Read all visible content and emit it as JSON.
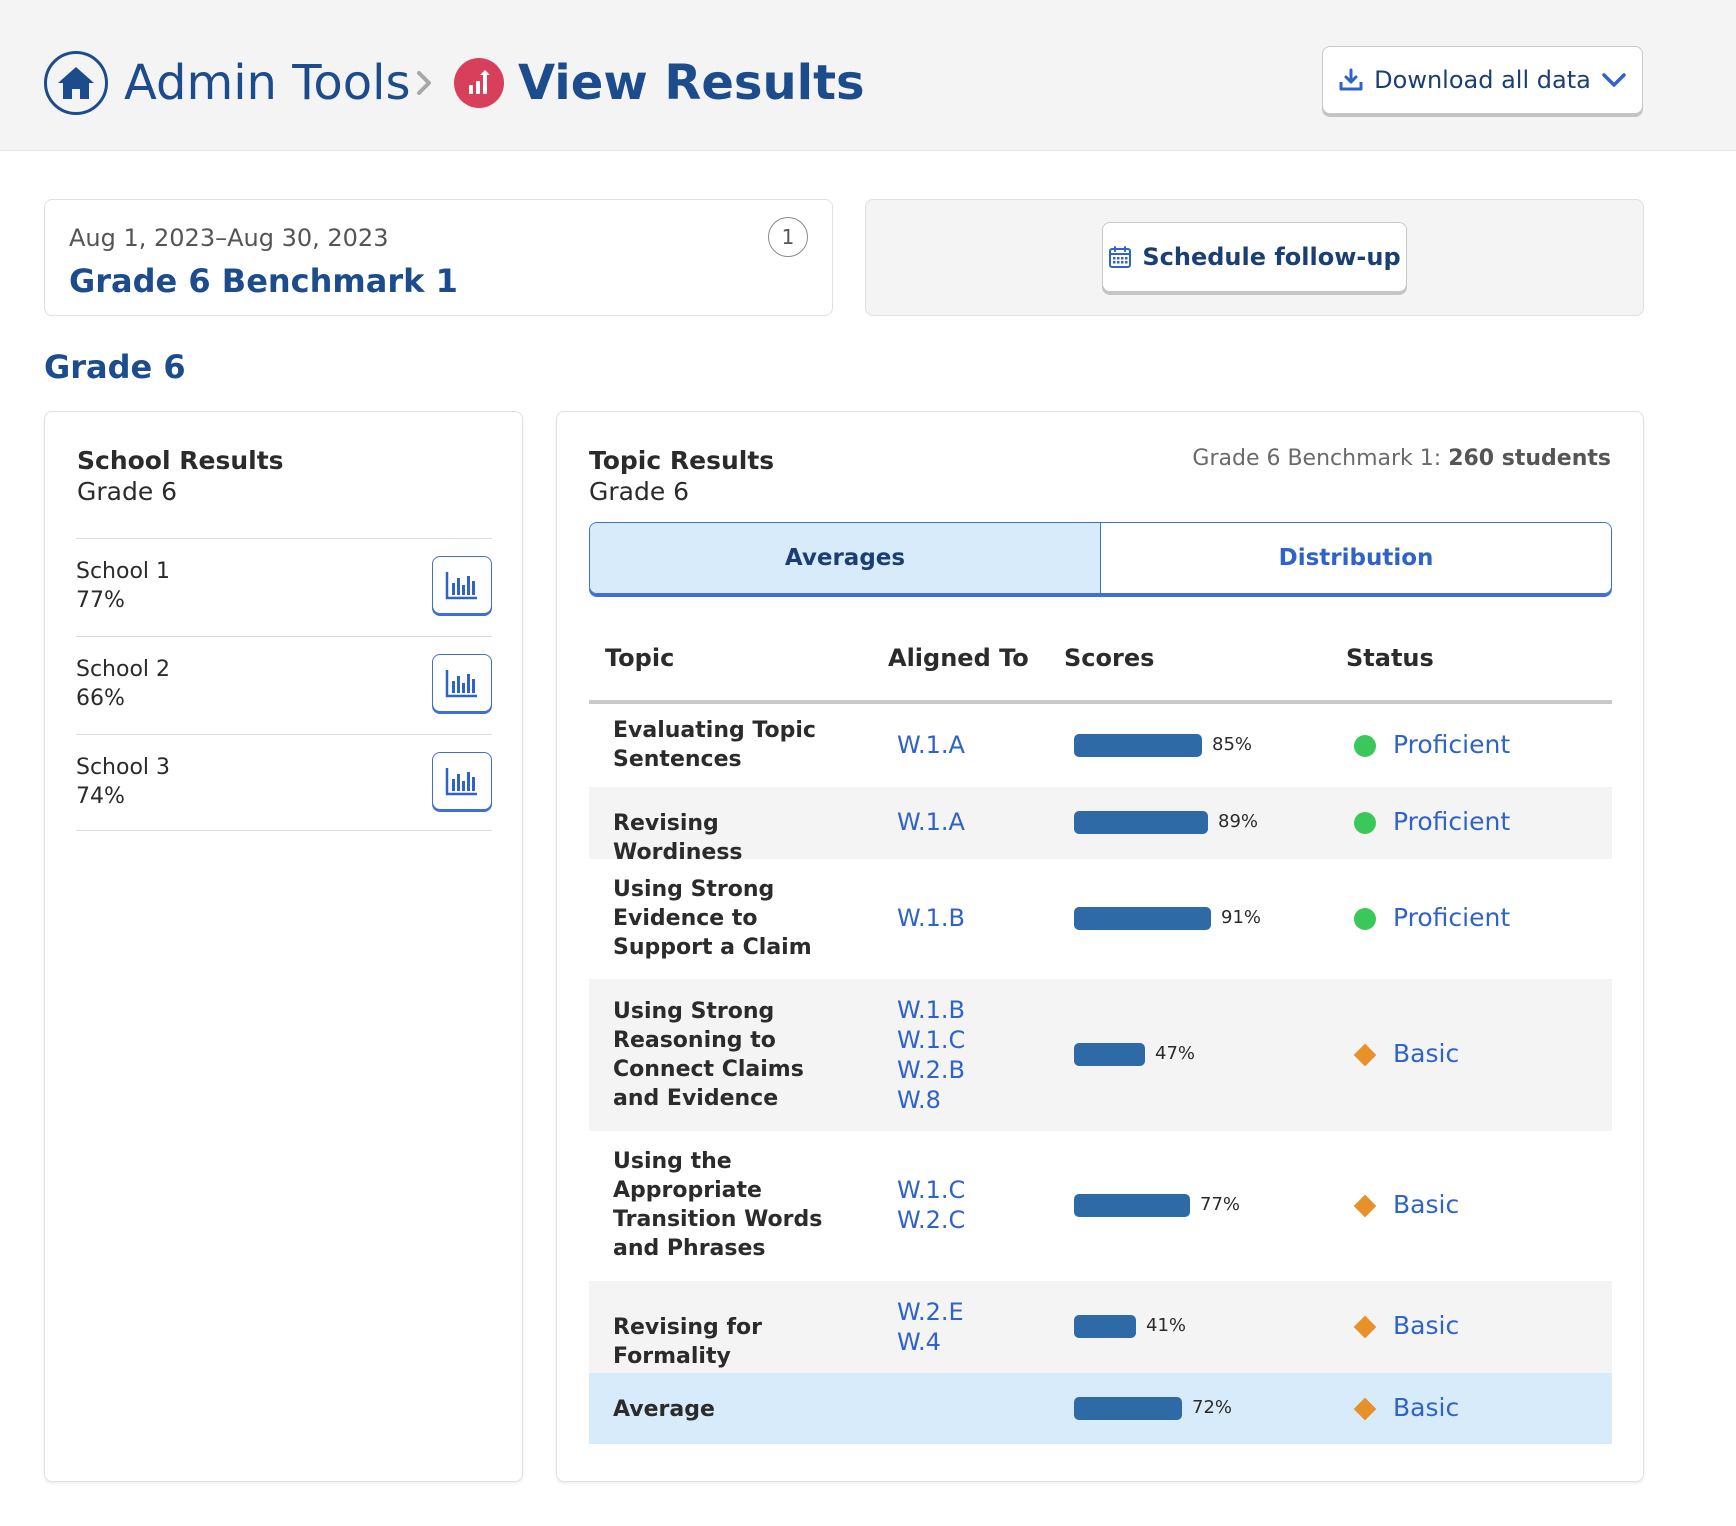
{
  "header": {
    "breadcrumb_root": "Admin Tools",
    "page_title": "View Results",
    "download_label": "Download all data"
  },
  "assessment": {
    "dates": "Aug 1, 2023–Aug 30, 2023",
    "name": "Grade 6 Benchmark 1",
    "count": "1",
    "follow_up_label": "Schedule follow-up"
  },
  "grade_heading": "Grade 6",
  "school_results": {
    "title": "School Results",
    "subtitle": "Grade 6",
    "schools": [
      {
        "name": "School 1",
        "percent": "77%"
      },
      {
        "name": "School 2",
        "percent": "66%"
      },
      {
        "name": "School 3",
        "percent": "74%"
      }
    ]
  },
  "topic_results": {
    "title": "Topic Results",
    "subtitle": "Grade 6",
    "students_prefix": "Grade 6 Benchmark 1:",
    "students_count": "260 students",
    "tabs": [
      "Averages",
      "Distribution"
    ],
    "columns": [
      "Topic",
      "Aligned To",
      "Scores",
      "Status"
    ],
    "rows": [
      {
        "topic": "Evaluating Topic Sentences",
        "aligned": [
          "W.1.A"
        ],
        "score": 85,
        "score_label": "85%",
        "status": "Proficient"
      },
      {
        "topic": "Revising Wordiness",
        "aligned": [
          "W.1.A"
        ],
        "score": 89,
        "score_label": "89%",
        "status": "Proficient"
      },
      {
        "topic": "Using Strong Evidence to Support a Claim",
        "aligned": [
          "W.1.B"
        ],
        "score": 91,
        "score_label": "91%",
        "status": "Proficient"
      },
      {
        "topic": "Using Strong Reasoning to Connect Claims and Evidence",
        "aligned": [
          "W.1.B",
          "W.1.C",
          "W.2.B",
          "W.8"
        ],
        "score": 47,
        "score_label": "47%",
        "status": "Basic"
      },
      {
        "topic": "Using the Appropriate Transition Words and Phrases",
        "aligned": [
          "W.1.C",
          "W.2.C"
        ],
        "score": 77,
        "score_label": "77%",
        "status": "Basic"
      },
      {
        "topic": "Revising for Formality",
        "aligned": [
          "W.2.E",
          "W.4"
        ],
        "score": 41,
        "score_label": "41%",
        "status": "Basic"
      }
    ],
    "average": {
      "topic": "Average",
      "score": 72,
      "score_label": "72%",
      "status": "Basic"
    }
  },
  "colors": {
    "primary_text": "#1c4c8c",
    "link": "#2f63c7",
    "bar": "#2e6aa6",
    "proficient": "#3cc75a",
    "basic": "#e8912b",
    "results_icon": "#d83f5a"
  },
  "icons": {
    "home": "home-icon",
    "results": "bar-chart-arrow-icon",
    "download": "download-icon",
    "calendar": "calendar-icon",
    "school_chart": "bar-chart-icon"
  }
}
